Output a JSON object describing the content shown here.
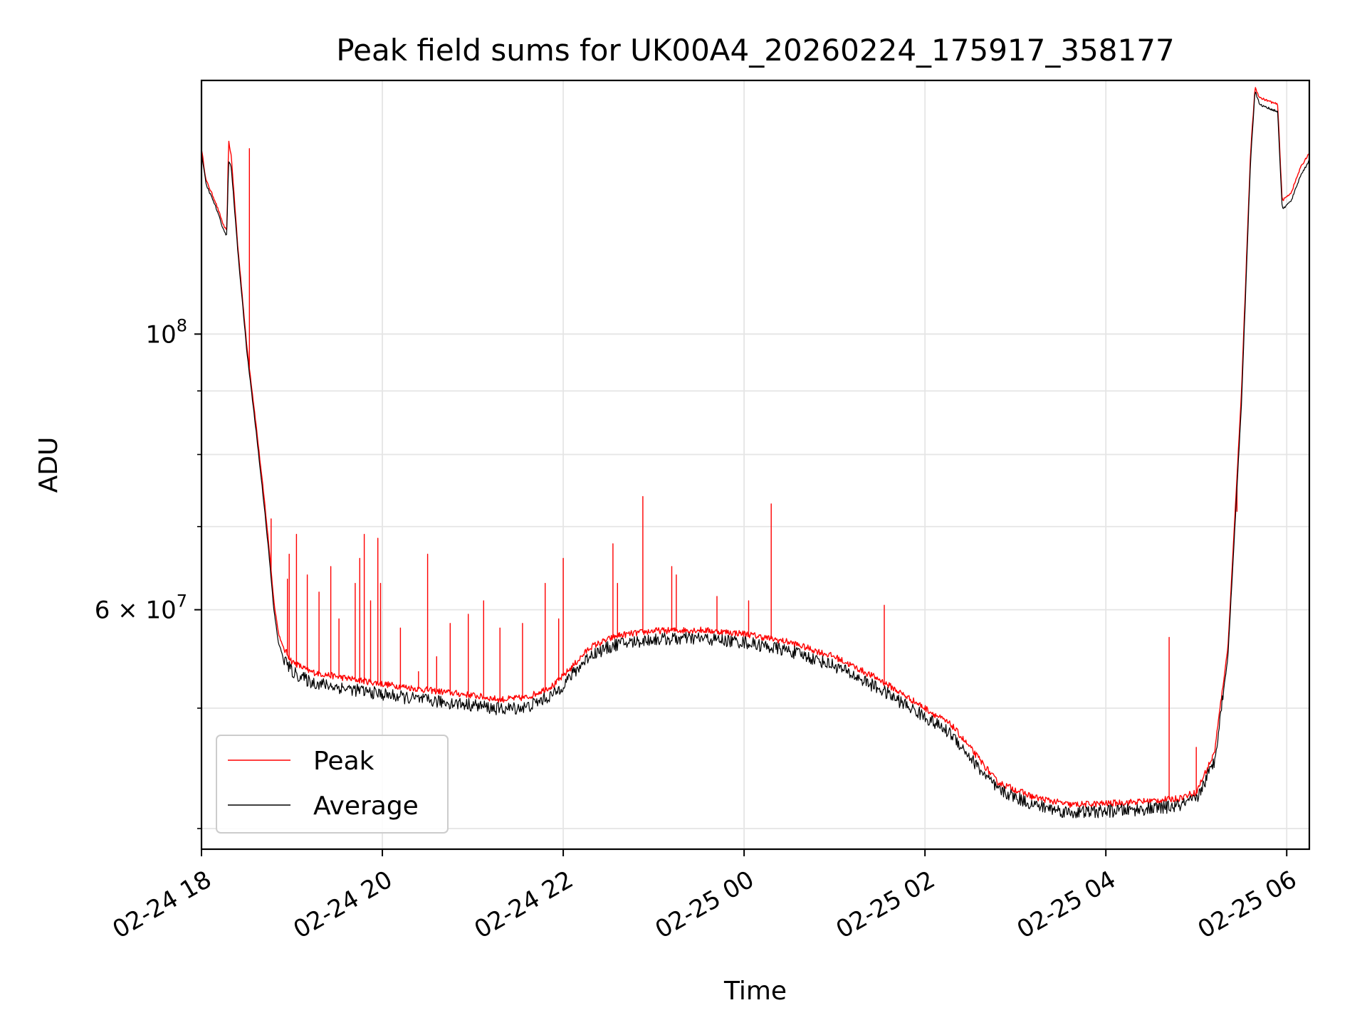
{
  "chart_data": {
    "type": "line",
    "title": "Peak field sums for UK00A4_20260224_175917_358177",
    "xlabel": "Time",
    "ylabel": "ADU",
    "yscale": "log",
    "grid": true,
    "legend_position": "lower-left",
    "x_unit": "hours since 02-24 18:00",
    "xlim": [
      0.0,
      12.25
    ],
    "ylim": [
      38500000,
      160000000
    ],
    "x_ticks": [
      {
        "value": 0,
        "label": "02-24 18"
      },
      {
        "value": 2,
        "label": "02-24 20"
      },
      {
        "value": 4,
        "label": "02-24 22"
      },
      {
        "value": 6,
        "label": "02-25 00"
      },
      {
        "value": 8,
        "label": "02-25 02"
      },
      {
        "value": 10,
        "label": "02-25 04"
      },
      {
        "value": 12,
        "label": "02-25 06"
      }
    ],
    "y_ticks_major": [
      {
        "value": 100000000,
        "base": "10",
        "exp": "8"
      },
      {
        "value": 60000000,
        "mantissa": "6",
        "base": "10",
        "exp": "7"
      }
    ],
    "y_ticks_minor": [
      40000000,
      50000000,
      70000000,
      80000000,
      90000000
    ],
    "series": [
      {
        "name": "Peak",
        "color": "#ff0000",
        "points": [
          [
            0.0,
            141000000
          ],
          [
            0.05,
            133000000
          ],
          [
            0.15,
            128000000
          ],
          [
            0.25,
            122000000
          ],
          [
            0.28,
            121000000
          ],
          [
            0.3,
            143000000
          ],
          [
            0.33,
            139000000
          ],
          [
            0.4,
            118000000
          ],
          [
            0.5,
            98000000
          ],
          [
            0.6,
            85000000
          ],
          [
            0.7,
            73000000
          ],
          [
            0.75,
            67000000
          ],
          [
            0.8,
            61000000
          ],
          [
            0.85,
            57500000
          ],
          [
            0.9,
            56000000
          ],
          [
            1.0,
            54500000
          ],
          [
            1.2,
            53500000
          ],
          [
            1.5,
            53000000
          ],
          [
            2.0,
            52300000
          ],
          [
            2.5,
            51700000
          ],
          [
            3.0,
            51200000
          ],
          [
            3.3,
            50800000
          ],
          [
            3.6,
            51000000
          ],
          [
            3.9,
            52200000
          ],
          [
            4.1,
            54000000
          ],
          [
            4.3,
            56000000
          ],
          [
            4.6,
            57200000
          ],
          [
            5.0,
            57700000
          ],
          [
            5.5,
            57800000
          ],
          [
            6.0,
            57400000
          ],
          [
            6.5,
            56500000
          ],
          [
            7.0,
            55000000
          ],
          [
            7.5,
            52700000
          ],
          [
            8.0,
            50000000
          ],
          [
            8.3,
            48400000
          ],
          [
            8.6,
            45500000
          ],
          [
            8.8,
            43600000
          ],
          [
            9.2,
            42400000
          ],
          [
            9.6,
            41800000
          ],
          [
            10.0,
            41900000
          ],
          [
            10.5,
            42100000
          ],
          [
            10.8,
            42300000
          ],
          [
            11.0,
            42800000
          ],
          [
            11.2,
            46000000
          ],
          [
            11.35,
            56000000
          ],
          [
            11.5,
            90000000
          ],
          [
            11.6,
            140000000
          ],
          [
            11.65,
            158000000
          ],
          [
            11.7,
            155000000
          ],
          [
            11.9,
            153000000
          ],
          [
            11.95,
            128000000
          ],
          [
            12.05,
            130000000
          ],
          [
            12.15,
            136000000
          ],
          [
            12.25,
            140000000
          ]
        ],
        "spikes": [
          [
            0.53,
            141000000
          ],
          [
            0.77,
            71000000
          ],
          [
            0.95,
            63500000
          ],
          [
            0.97,
            66500000
          ],
          [
            1.05,
            69000000
          ],
          [
            1.17,
            64000000
          ],
          [
            1.3,
            62000000
          ],
          [
            1.43,
            65000000
          ],
          [
            1.52,
            59000000
          ],
          [
            1.7,
            63000000
          ],
          [
            1.75,
            66000000
          ],
          [
            1.8,
            69000000
          ],
          [
            1.87,
            61000000
          ],
          [
            1.95,
            68500000
          ],
          [
            1.98,
            63000000
          ],
          [
            2.2,
            58000000
          ],
          [
            2.4,
            53500000
          ],
          [
            2.5,
            66500000
          ],
          [
            2.6,
            55000000
          ],
          [
            2.75,
            58500000
          ],
          [
            2.95,
            59500000
          ],
          [
            3.12,
            61000000
          ],
          [
            3.3,
            58000000
          ],
          [
            3.55,
            58500000
          ],
          [
            3.8,
            63000000
          ],
          [
            3.95,
            59000000
          ],
          [
            4.0,
            66000000
          ],
          [
            4.55,
            67800000
          ],
          [
            4.6,
            63000000
          ],
          [
            4.88,
            74000000
          ],
          [
            5.2,
            65000000
          ],
          [
            5.25,
            64000000
          ],
          [
            5.7,
            61500000
          ],
          [
            6.05,
            61000000
          ],
          [
            6.3,
            73000000
          ],
          [
            7.55,
            60500000
          ],
          [
            10.7,
            57000000
          ],
          [
            11.0,
            46500000
          ],
          [
            11.45,
            72000000
          ]
        ]
      },
      {
        "name": "Average",
        "color": "#000000",
        "points": [
          [
            0.0,
            140000000
          ],
          [
            0.05,
            132000000
          ],
          [
            0.15,
            127000000
          ],
          [
            0.25,
            121000000
          ],
          [
            0.28,
            120000000
          ],
          [
            0.3,
            138000000
          ],
          [
            0.33,
            136000000
          ],
          [
            0.4,
            117000000
          ],
          [
            0.5,
            97000000
          ],
          [
            0.6,
            84000000
          ],
          [
            0.7,
            72000000
          ],
          [
            0.75,
            66000000
          ],
          [
            0.8,
            60000000
          ],
          [
            0.85,
            56500000
          ],
          [
            0.9,
            55000000
          ],
          [
            1.0,
            53500000
          ],
          [
            1.2,
            52500000
          ],
          [
            1.5,
            52000000
          ],
          [
            2.0,
            51300000
          ],
          [
            2.5,
            50700000
          ],
          [
            3.0,
            50300000
          ],
          [
            3.3,
            49900000
          ],
          [
            3.6,
            50100000
          ],
          [
            3.9,
            51300000
          ],
          [
            4.1,
            53200000
          ],
          [
            4.3,
            55200000
          ],
          [
            4.6,
            56300000
          ],
          [
            5.0,
            56800000
          ],
          [
            5.5,
            56900000
          ],
          [
            6.0,
            56500000
          ],
          [
            6.5,
            55600000
          ],
          [
            7.0,
            54100000
          ],
          [
            7.5,
            51800000
          ],
          [
            8.0,
            49200000
          ],
          [
            8.3,
            47600000
          ],
          [
            8.6,
            44700000
          ],
          [
            8.8,
            43000000
          ],
          [
            9.2,
            41800000
          ],
          [
            9.6,
            41200000
          ],
          [
            10.0,
            41300000
          ],
          [
            10.5,
            41500000
          ],
          [
            10.8,
            41700000
          ],
          [
            11.0,
            42200000
          ],
          [
            11.2,
            45300000
          ],
          [
            11.35,
            55000000
          ],
          [
            11.5,
            88000000
          ],
          [
            11.6,
            138000000
          ],
          [
            11.65,
            157000000
          ],
          [
            11.7,
            153000000
          ],
          [
            11.9,
            151000000
          ],
          [
            11.95,
            126000000
          ],
          [
            12.05,
            128000000
          ],
          [
            12.15,
            134000000
          ],
          [
            12.25,
            138000000
          ]
        ]
      }
    ]
  }
}
